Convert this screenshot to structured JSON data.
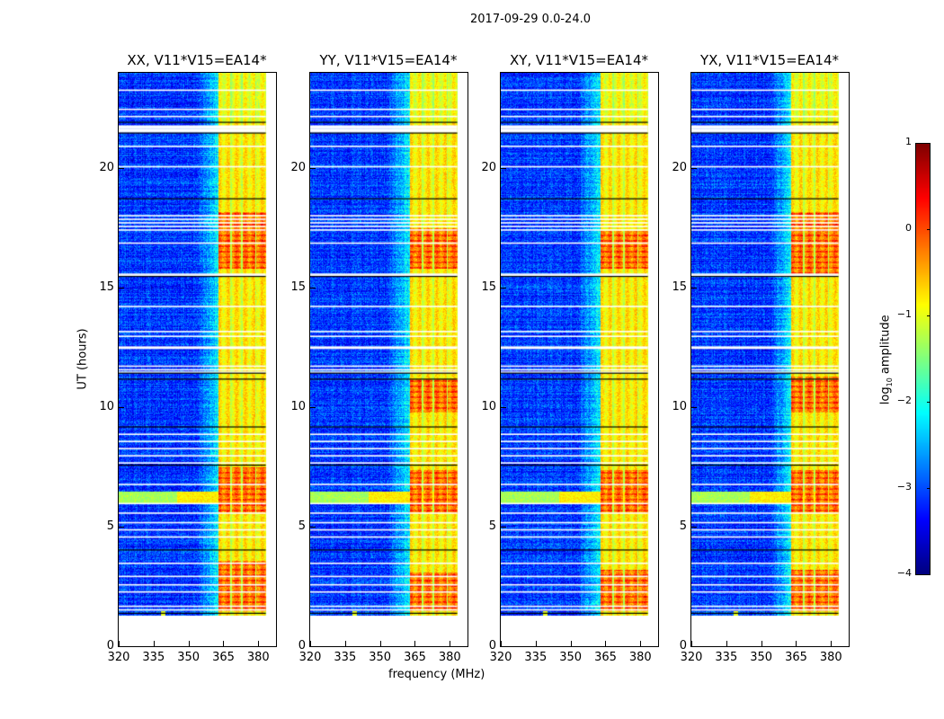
{
  "chart_data": {
    "type": "heatmap",
    "title": "2017-09-29 0.0-24.0",
    "xlabel": "frequency (MHz)",
    "ylabel": "UT (hours)",
    "xlim": [
      320,
      387.6
    ],
    "ylim": [
      0,
      24
    ],
    "xticks": [
      320,
      335,
      350,
      365,
      380
    ],
    "yticks": [
      0,
      5,
      10,
      15,
      20
    ],
    "panels": [
      {
        "title": "XX, V11*V15=EA14*",
        "hot_hours": [
          [
            1.5,
            3.6
          ],
          [
            5.6,
            7.5
          ],
          [
            15.8,
            18.2
          ]
        ]
      },
      {
        "title": "YY, V11*V15=EA14*",
        "hot_hours": [
          [
            1.5,
            3.1
          ],
          [
            5.6,
            7.4
          ],
          [
            9.8,
            11.2
          ],
          [
            15.8,
            17.5
          ]
        ]
      },
      {
        "title": "XY, V11*V15=EA14*",
        "hot_hours": [
          [
            1.5,
            3.2
          ],
          [
            5.6,
            7.4
          ],
          [
            15.8,
            17.4
          ]
        ]
      },
      {
        "title": "YX, V11*V15=EA14*",
        "hot_hours": [
          [
            1.5,
            3.2
          ],
          [
            5.6,
            7.4
          ],
          [
            9.8,
            11.3
          ],
          [
            15.6,
            18.2
          ]
        ]
      }
    ],
    "rfi_channels_mhz": [
      [
        362.8,
        367.7
      ],
      [
        368.5,
        372.3
      ],
      [
        373.0,
        378.4
      ],
      [
        378.8,
        383.0
      ]
    ],
    "no_data_hours": [
      0,
      1.3
    ],
    "flagged_rows_hours": [
      21.55,
      21.6,
      21.65,
      21.7,
      21.75,
      21.8,
      12.5,
      12.55,
      15.55,
      15.6,
      11.75,
      11.6,
      11.5,
      22.2,
      22.5,
      23.3,
      20.1,
      20.95,
      18.05,
      17.9,
      17.75,
      17.6,
      17.45,
      16.9,
      14.25,
      13.2,
      13.0,
      8.9,
      8.6,
      8.3,
      8.0,
      7.7,
      6.8,
      6.0,
      5.6,
      5.2,
      4.9,
      4.6,
      3.5,
      2.95,
      2.6,
      2.3,
      1.7,
      1.55
    ],
    "black_rows_hours": [
      1.4,
      4.05,
      7.6,
      9.2,
      11.2,
      11.45,
      15.5,
      18.75,
      21.5,
      21.95
    ],
    "broadband_event_hours": 6.25,
    "colorbar": {
      "label": "log10 amplitude",
      "label_main": "log",
      "label_sub": "10",
      "label_rest": " amplitude",
      "range": [
        -4,
        1
      ],
      "ticks": [
        "1",
        "0",
        "−1",
        "−2",
        "−3",
        "−4"
      ],
      "colormap": "jet"
    }
  }
}
